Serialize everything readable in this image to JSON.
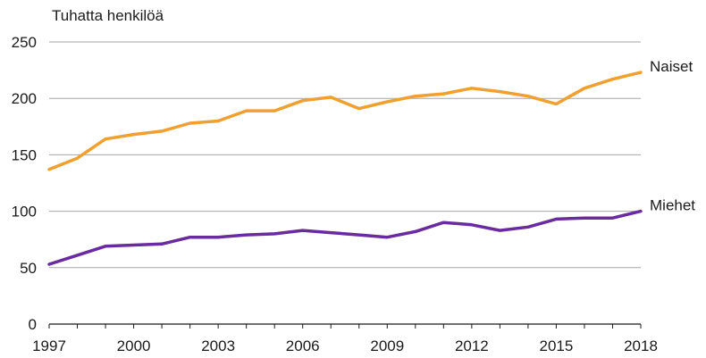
{
  "chart_data": {
    "type": "line",
    "ylabel": "Tuhatta henkilöä",
    "ylim": [
      0,
      250
    ],
    "yticks": [
      0,
      50,
      100,
      150,
      200,
      250
    ],
    "xlim": [
      1997,
      2018
    ],
    "xticks": [
      1997,
      2000,
      2003,
      2006,
      2009,
      2012,
      2015,
      2018
    ],
    "grid": true,
    "x": [
      1997,
      1998,
      1999,
      2000,
      2001,
      2002,
      2003,
      2004,
      2005,
      2006,
      2007,
      2008,
      2009,
      2010,
      2011,
      2012,
      2013,
      2014,
      2015,
      2016,
      2017,
      2018
    ],
    "series": [
      {
        "name": "Naiset",
        "color": "#f0a030",
        "values": [
          137,
          147,
          164,
          168,
          171,
          178,
          180,
          189,
          189,
          198,
          201,
          191,
          197,
          202,
          204,
          209,
          206,
          202,
          195,
          209,
          217,
          223
        ]
      },
      {
        "name": "Miehet",
        "color": "#6a2aa0",
        "values": [
          53,
          61,
          69,
          70,
          71,
          77,
          77,
          79,
          80,
          83,
          81,
          79,
          77,
          82,
          90,
          88,
          83,
          86,
          93,
          94,
          94,
          100
        ]
      }
    ]
  }
}
